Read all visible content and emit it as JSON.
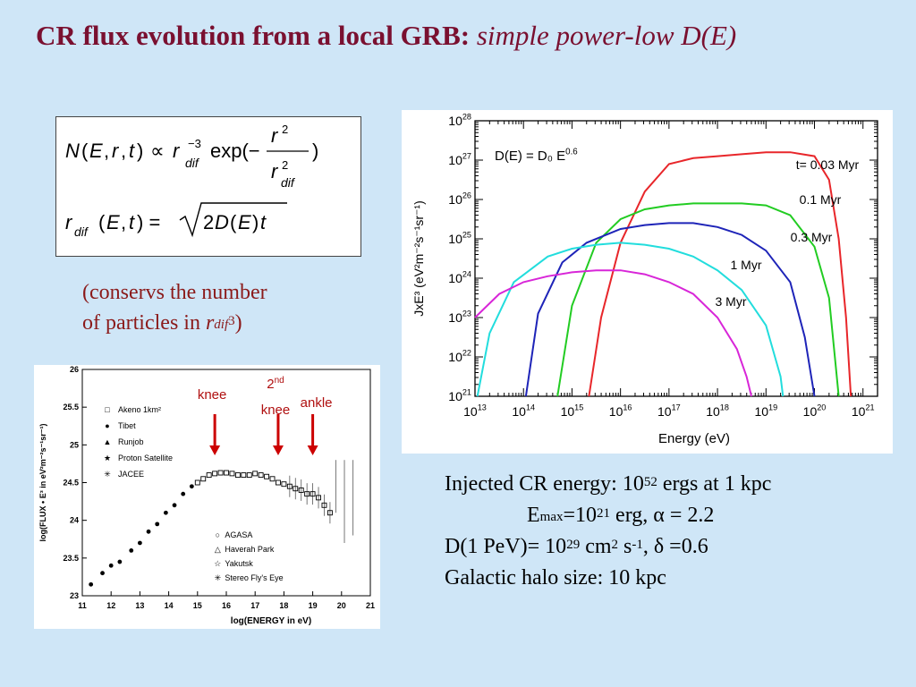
{
  "title": {
    "bold": "CR flux evolution from a local GRB:",
    "italic": "simple power-low D(E)"
  },
  "formula": {
    "line1": "N(E, r, t) ∝ r_dif^−3 exp(− r^2 / r_dif^2)",
    "line2": "r_dif (E, t) = √(2D(E)t)"
  },
  "note": {
    "line1": "(conservs the number",
    "line2_a": "of particles in ",
    "line2_r": "r",
    "line2_sub": "dif",
    "line2_sup": "3",
    "line2_b": ")"
  },
  "info": {
    "l1_a": "Injected CR energy: 10",
    "l1_sup": "52",
    "l1_b": " ergs at 1 kpc",
    "l2_a": "E",
    "l2_sub": "max",
    "l2_b": "=10",
    "l2_sup": "21",
    "l2_c": " erg, α = 2.2",
    "l3_a": "D(1 PeV)= 10",
    "l3_sup1": "29",
    "l3_b": " cm",
    "l3_sup2": "2",
    "l3_c": " s",
    "l3_sup3": "-1",
    "l3_d": ", δ =0.6",
    "l4": "Galactic halo size: 10 kpc"
  },
  "chart_data": [
    {
      "type": "line",
      "xlabel": "Energy  (eV)",
      "ylabel": "JxE³  (eV²m⁻²s⁻¹sr⁻¹)",
      "annotation": "D(E) = D₀ E^0.6",
      "x_log_range": [
        13,
        21.3
      ],
      "y_log_range": [
        21,
        28
      ],
      "x_ticks": [
        "10^13",
        "10^14",
        "10^15",
        "10^16",
        "10^17",
        "10^18",
        "10^19",
        "10^20",
        "10^21"
      ],
      "y_ticks": [
        "10^21",
        "10^22",
        "10^23",
        "10^24",
        "10^25",
        "10^26",
        "10^27",
        "10^28"
      ],
      "series": [
        {
          "name": "t= 0.03 Myr",
          "color": "#e8262a",
          "points": [
            [
              15.35,
              21
            ],
            [
              15.6,
              23
            ],
            [
              16.0,
              24.9
            ],
            [
              16.5,
              26.2
            ],
            [
              17.0,
              26.9
            ],
            [
              17.5,
              27.05
            ],
            [
              18.0,
              27.1
            ],
            [
              18.5,
              27.15
            ],
            [
              19.0,
              27.2
            ],
            [
              19.5,
              27.2
            ],
            [
              20.0,
              27.1
            ],
            [
              20.3,
              26.5
            ],
            [
              20.5,
              25
            ],
            [
              20.65,
              23
            ],
            [
              20.75,
              21
            ]
          ]
        },
        {
          "name": "0.1 Myr",
          "color": "#22cc22",
          "points": [
            [
              14.7,
              21
            ],
            [
              15.0,
              23.3
            ],
            [
              15.5,
              24.9
            ],
            [
              16.0,
              25.5
            ],
            [
              16.5,
              25.75
            ],
            [
              17.0,
              25.85
            ],
            [
              17.5,
              25.9
            ],
            [
              18.0,
              25.9
            ],
            [
              18.5,
              25.9
            ],
            [
              19.0,
              25.85
            ],
            [
              19.5,
              25.6
            ],
            [
              20.0,
              24.8
            ],
            [
              20.3,
              23.5
            ],
            [
              20.5,
              21
            ]
          ]
        },
        {
          "name": "0.3 Myr",
          "color": "#1e24b8",
          "points": [
            [
              14.05,
              21
            ],
            [
              14.3,
              23.1
            ],
            [
              14.8,
              24.4
            ],
            [
              15.3,
              24.9
            ],
            [
              16.0,
              25.25
            ],
            [
              16.5,
              25.35
            ],
            [
              17.0,
              25.4
            ],
            [
              17.5,
              25.4
            ],
            [
              18.0,
              25.3
            ],
            [
              18.5,
              25.1
            ],
            [
              19.0,
              24.7
            ],
            [
              19.5,
              23.9
            ],
            [
              19.8,
              22.5
            ],
            [
              20.0,
              21
            ]
          ]
        },
        {
          "name": "1 Myr",
          "color": "#22dddd",
          "points": [
            [
              13.05,
              21
            ],
            [
              13.3,
              22.6
            ],
            [
              13.8,
              23.9
            ],
            [
              14.5,
              24.55
            ],
            [
              15.0,
              24.75
            ],
            [
              15.5,
              24.85
            ],
            [
              16.0,
              24.9
            ],
            [
              16.5,
              24.85
            ],
            [
              17.0,
              24.75
            ],
            [
              17.5,
              24.55
            ],
            [
              18.0,
              24.2
            ],
            [
              18.5,
              23.7
            ],
            [
              19.0,
              22.8
            ],
            [
              19.3,
              21.5
            ],
            [
              19.35,
              21
            ]
          ]
        },
        {
          "name": "3 Myr",
          "color": "#d826d8",
          "points": [
            [
              13.0,
              23.0
            ],
            [
              13.5,
              23.6
            ],
            [
              14.0,
              23.9
            ],
            [
              14.5,
              24.05
            ],
            [
              15.0,
              24.15
            ],
            [
              15.5,
              24.2
            ],
            [
              16.0,
              24.2
            ],
            [
              16.5,
              24.1
            ],
            [
              17.0,
              23.9
            ],
            [
              17.5,
              23.6
            ],
            [
              18.0,
              23.0
            ],
            [
              18.4,
              22.2
            ],
            [
              18.6,
              21.5
            ],
            [
              18.7,
              21
            ]
          ]
        }
      ]
    },
    {
      "type": "scatter",
      "xlabel": "log(ENERGY in eV)",
      "ylabel": "log(FLUX • E³ in eV²m⁻²s⁻¹sr⁻¹)",
      "xlim": [
        11,
        21
      ],
      "ylim": [
        23,
        26
      ],
      "x_ticks": [
        "11",
        "12",
        "13",
        "14",
        "15",
        "16",
        "17",
        "18",
        "19",
        "20",
        "21"
      ],
      "y_ticks": [
        "23",
        "23.5",
        "24",
        "24.5",
        "25",
        "25.5",
        "26"
      ],
      "legend_top": [
        "Akeno 1km²",
        "Tibet",
        "Runjob",
        "Proton Satellite",
        "JACEE"
      ],
      "legend_bottom": [
        "AGASA",
        "Haverah Park",
        "Yakutsk",
        "Stereo Fly's Eye"
      ],
      "annotations": [
        {
          "label": "knee",
          "x": 15.6
        },
        {
          "label": "2nd",
          "label2": "knee",
          "x": 17.8
        },
        {
          "label": "ankle",
          "x": 19.0
        }
      ],
      "points": [
        [
          11.3,
          23.15
        ],
        [
          11.7,
          23.3
        ],
        [
          12.0,
          23.4
        ],
        [
          12.3,
          23.45
        ],
        [
          12.7,
          23.6
        ],
        [
          13.0,
          23.7
        ],
        [
          13.3,
          23.85
        ],
        [
          13.6,
          23.95
        ],
        [
          13.9,
          24.1
        ],
        [
          14.2,
          24.2
        ],
        [
          14.5,
          24.35
        ],
        [
          14.8,
          24.45
        ],
        [
          15.0,
          24.5
        ],
        [
          15.2,
          24.55
        ],
        [
          15.4,
          24.6
        ],
        [
          15.6,
          24.62
        ],
        [
          15.8,
          24.63
        ],
        [
          16.0,
          24.63
        ],
        [
          16.2,
          24.62
        ],
        [
          16.4,
          24.6
        ],
        [
          16.6,
          24.6
        ],
        [
          16.8,
          24.6
        ],
        [
          17.0,
          24.62
        ],
        [
          17.2,
          24.6
        ],
        [
          17.4,
          24.58
        ],
        [
          17.6,
          24.55
        ],
        [
          17.8,
          24.5
        ],
        [
          18.0,
          24.48
        ],
        [
          18.2,
          24.45
        ],
        [
          18.4,
          24.42
        ],
        [
          18.6,
          24.4
        ],
        [
          18.8,
          24.35
        ],
        [
          19.0,
          24.35
        ],
        [
          19.2,
          24.3
        ],
        [
          19.4,
          24.2
        ],
        [
          19.6,
          24.1
        ]
      ]
    }
  ]
}
